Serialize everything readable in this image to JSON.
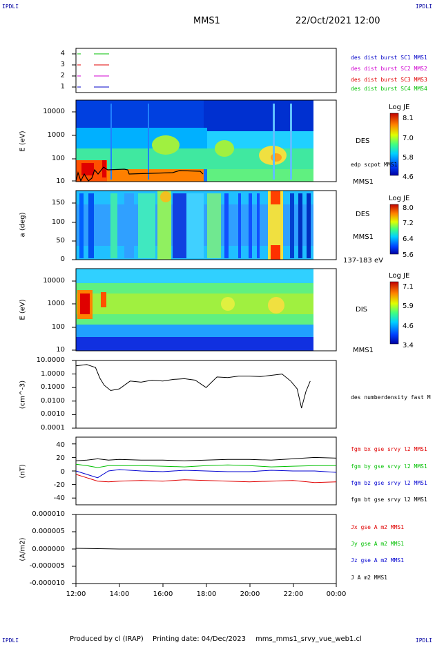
{
  "corner_labels": {
    "tl": "IPDLI",
    "tr": "IPDLI",
    "bl": "IPDLI",
    "br": "IPDLI"
  },
  "header": {
    "spacecraft": "MMS1",
    "datetime": "22/Oct/2021 12:00"
  },
  "footer": {
    "produced_by": "Produced by cl (IRAP)",
    "printing_date": "Printing date: 04/Dec/2023",
    "filename": "mms_mms1_srvy_vue_web1.cl"
  },
  "colors": {
    "mms1": "#0000c8",
    "mms2": "#d000d0",
    "mms3": "#e00000",
    "mms4": "#00c000",
    "bx": "#e00000",
    "by": "#00c000",
    "bz": "#0000d0",
    "bt": "#000000"
  },
  "x_axis": {
    "ticks": [
      "12:00",
      "14:00",
      "16:00",
      "18:00",
      "20:00",
      "22:00",
      "00:00"
    ]
  },
  "panels": {
    "avail": {
      "yticks": [
        "4",
        "3",
        "2",
        "1"
      ],
      "labels": [
        {
          "text": "des dist burst SC1 MMS1",
          "color": "#0000c8"
        },
        {
          "text": "des dist burst SC2 MMS2",
          "color": "#d000d0"
        },
        {
          "text": "des dist burst SC3 MMS3",
          "color": "#e00000"
        },
        {
          "text": "des dist burst SC4 MMS4",
          "color": "#00c000"
        }
      ]
    },
    "des_energy": {
      "ylabel": "E (eV)",
      "yticks": [
        "10000",
        "1000",
        "100",
        "10"
      ],
      "name": "DES",
      "overlay_label": "edp scpot MMS1",
      "sc_label": "MMS1",
      "colorbar": {
        "title": "Log JE",
        "ticks": [
          "8.1",
          "7.0",
          "5.8",
          "4.6"
        ]
      }
    },
    "des_pitch": {
      "ylabel": "a (deg)",
      "yticks": [
        "150",
        "100",
        "50",
        "0"
      ],
      "name": "DES",
      "sc_label": "MMS1",
      "range_label": "137-183 eV",
      "colorbar": {
        "title": "Log JE",
        "ticks": [
          "8.0",
          "7.2",
          "6.4",
          "5.6"
        ]
      }
    },
    "dis_energy": {
      "ylabel": "E (eV)",
      "yticks": [
        "10000",
        "1000",
        "100",
        "10"
      ],
      "name": "DIS",
      "sc_label": "MMS1",
      "colorbar": {
        "title": "Log JE",
        "ticks": [
          "7.1",
          "5.9",
          "4.6",
          "3.4"
        ]
      }
    },
    "density": {
      "ylabel": "(cm^-3)",
      "yticks": [
        "10.0000",
        "1.0000",
        "0.1000",
        "0.0100",
        "0.0010",
        "0.0001"
      ],
      "label": "des numberdensity fast M"
    },
    "bfield": {
      "ylabel": "(nT)",
      "yticks": [
        "40",
        "20",
        "0",
        "-20",
        "-40"
      ],
      "labels": [
        {
          "text": "fgm bx gse srvy l2 MMS1",
          "color": "#e00000"
        },
        {
          "text": "fgm by gse srvy l2 MMS1",
          "color": "#00c000"
        },
        {
          "text": "fgm bz gse srvy l2 MMS1",
          "color": "#0000d0"
        },
        {
          "text": "fgm bt gse srvy l2 MMS1",
          "color": "#000000"
        }
      ]
    },
    "current": {
      "ylabel": "(A/m2)",
      "yticks": [
        "0.000010",
        "0.000005",
        "0.000000",
        "-0.000005",
        "-0.000010"
      ],
      "labels": [
        {
          "text": "Jx gse A m2 MMS1",
          "color": "#e00000"
        },
        {
          "text": "Jy gse A m2 MMS1",
          "color": "#00c000"
        },
        {
          "text": "Jz gse A m2 MMS1",
          "color": "#0000d0"
        },
        {
          "text": "J A m2 MMS1",
          "color": "#000000"
        }
      ]
    }
  },
  "chart_data": {
    "type": "line",
    "x_units": "hours UT",
    "xlim": [
      12,
      24
    ],
    "density": {
      "ylim": [
        0.0001,
        10
      ],
      "log": true,
      "x": [
        12.0,
        12.5,
        12.9,
        13.1,
        13.3,
        13.6,
        14.0,
        14.5,
        15.0,
        15.5,
        16.0,
        16.5,
        17.0,
        17.5,
        18.0,
        18.5,
        19.0,
        19.5,
        20.0,
        20.5,
        21.0,
        21.5,
        21.9,
        22.2,
        22.4,
        22.6,
        22.8
      ],
      "y": [
        4.0,
        5.0,
        3.0,
        0.5,
        0.15,
        0.06,
        0.08,
        0.3,
        0.25,
        0.35,
        0.3,
        0.4,
        0.45,
        0.35,
        0.1,
        0.6,
        0.55,
        0.7,
        0.7,
        0.65,
        0.8,
        1.0,
        0.3,
        0.08,
        0.003,
        0.05,
        0.3
      ]
    },
    "bfield": {
      "ylim": [
        -50,
        50
      ],
      "x": [
        12.0,
        12.5,
        13.0,
        13.5,
        14.0,
        15.0,
        16.0,
        17.0,
        18.0,
        19.0,
        20.0,
        21.0,
        22.0,
        23.0,
        24.0
      ],
      "series": [
        {
          "name": "fgm bx gse srvy l2 MMS1",
          "values": [
            -5,
            -10,
            -15,
            -16,
            -15,
            -14,
            -15,
            -13,
            -14,
            -15,
            -16,
            -15,
            -14,
            -17,
            -16
          ]
        },
        {
          "name": "fgm by gse srvy l2 MMS1",
          "values": [
            10,
            8,
            5,
            8,
            8,
            8,
            7,
            6,
            8,
            9,
            8,
            6,
            7,
            8,
            8
          ]
        },
        {
          "name": "fgm bz gse srvy l2 MMS1",
          "values": [
            0,
            -5,
            -10,
            0,
            2,
            0,
            -1,
            1,
            0,
            -1,
            -1,
            1,
            0,
            0,
            -2
          ]
        },
        {
          "name": "fgm bt gse srvy l2 MMS1",
          "values": [
            15,
            16,
            18,
            16,
            17,
            16,
            16,
            15,
            16,
            17,
            17,
            16,
            18,
            20,
            19
          ]
        }
      ]
    },
    "current": {
      "ylim": [
        -1e-05,
        1e-05
      ],
      "x": [
        12.0,
        13.0,
        14.0,
        16.0,
        18.0,
        20.0,
        22.0,
        24.0
      ],
      "series": [
        {
          "name": "J A m2 MMS1",
          "values": [
            2e-07,
            1e-07,
            0.0,
            0.0,
            0.0,
            0.0,
            0.0,
            0.0
          ]
        }
      ]
    }
  }
}
